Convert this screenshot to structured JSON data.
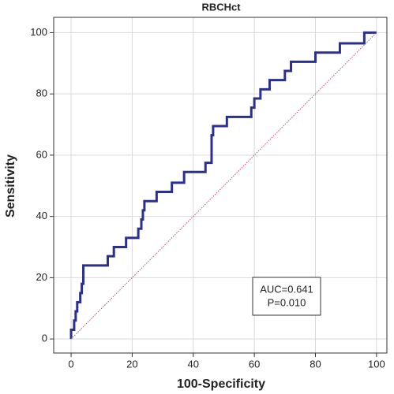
{
  "chart_data": {
    "type": "line",
    "title": "RBCHct",
    "x_label": "100-Specificity",
    "y_label": "Sensitivity",
    "xlim": [
      -5.7,
      103.4
    ],
    "ylim": [
      -4.6,
      105
    ],
    "xticks": [
      0,
      20,
      40,
      60,
      80,
      100
    ],
    "yticks": [
      0,
      20,
      40,
      60,
      80,
      100
    ],
    "grid": true,
    "series": [
      {
        "color": "#2b2f8f",
        "step": true,
        "x": [
          0,
          0,
          1,
          1,
          1.5,
          1.5,
          2,
          2,
          3,
          3,
          3.5,
          3.5,
          4,
          4,
          12,
          12,
          14,
          14,
          18,
          18,
          22,
          22,
          23,
          23,
          23.5,
          23.5,
          24,
          24,
          28,
          28,
          33,
          33,
          37,
          37,
          44,
          44,
          46,
          46,
          46.5,
          46.5,
          47,
          47,
          51,
          51,
          59,
          59,
          60,
          60,
          62,
          62,
          65,
          65,
          70,
          70,
          72,
          72,
          80,
          80,
          88,
          88,
          96,
          96,
          100
        ],
        "values": [
          0,
          3,
          3,
          6,
          6,
          9,
          9,
          12,
          12,
          15,
          15,
          18,
          18,
          24,
          24,
          27,
          27,
          30,
          30,
          33,
          33,
          36,
          36,
          39,
          39,
          42,
          42,
          45,
          45,
          48,
          48,
          51,
          51,
          54.5,
          54.5,
          57.5,
          57.5,
          66.5,
          66.5,
          69.5,
          69.5,
          69.5,
          69.5,
          72.5,
          72.5,
          75.5,
          75.5,
          78.5,
          78.5,
          81.5,
          81.5,
          84.5,
          84.5,
          87.5,
          87.5,
          90.5,
          90.5,
          93.5,
          93.5,
          96.5,
          96.5,
          100,
          100
        ]
      },
      {
        "color": "#c0506a",
        "dotted": true,
        "x": [
          0,
          100
        ],
        "values": [
          0,
          100
        ]
      }
    ],
    "annotations": [
      "AUC=0.641",
      "P=0.010"
    ]
  }
}
